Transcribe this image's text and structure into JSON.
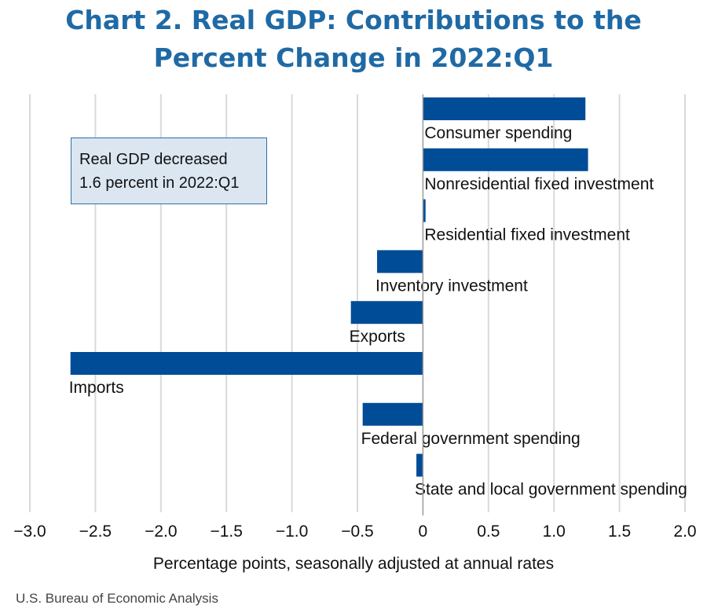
{
  "title_lines": [
    "Chart 2. Real GDP: Contributions to the",
    "Percent Change in 2022:Q1"
  ],
  "annotation_lines": [
    "Real GDP decreased",
    "1.6 percent in 2022:Q1"
  ],
  "source": "U.S. Bureau of Economic Analysis",
  "colors": {
    "bar": "#004c97",
    "title": "#1f6aa5",
    "grid": "#d9d9d9",
    "annotation_bg": "#dbe6f1"
  },
  "chart_data": {
    "type": "bar",
    "orientation": "horizontal",
    "categories": [
      "Consumer spending",
      "Nonresidential fixed investment",
      "Residential fixed investment",
      "Inventory investment",
      "Exports",
      "Imports",
      "Federal government spending",
      "State and local government spending"
    ],
    "values": [
      1.24,
      1.26,
      0.02,
      -0.35,
      -0.55,
      -2.69,
      -0.46,
      -0.05
    ],
    "xlabel": "Percentage points, seasonally adjusted at annual rates",
    "ylabel": "",
    "xlim": [
      -3.0,
      2.0
    ],
    "xticks": [
      -3.0,
      -2.5,
      -2.0,
      -1.5,
      -1.0,
      -0.5,
      0,
      0.5,
      1.0,
      1.5,
      2.0
    ],
    "xtick_labels": [
      "−3.0",
      "−2.5",
      "−2.0",
      "−1.5",
      "−1.0",
      "−0.5",
      "0",
      "0.5",
      "1.0",
      "1.5",
      "2.0"
    ],
    "grid": "vertical",
    "legend": "none"
  }
}
